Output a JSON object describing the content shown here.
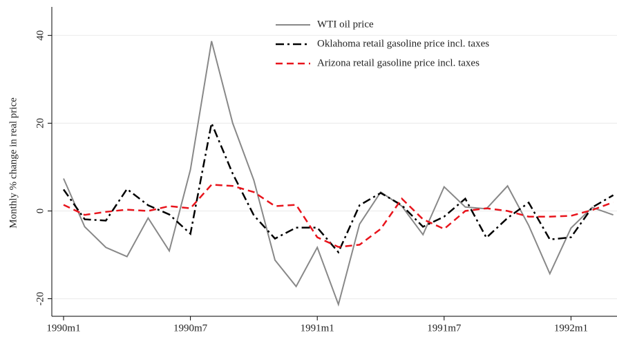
{
  "chart_data": {
    "type": "line",
    "y_label": "Monthly % change in real price",
    "categories": [
      "1990m1",
      null,
      null,
      null,
      null,
      null,
      "1990m7",
      null,
      null,
      null,
      null,
      null,
      "1991m1",
      null,
      null,
      null,
      null,
      null,
      "1991m7",
      null,
      null,
      null,
      null,
      null,
      "1992m1",
      null,
      null
    ],
    "series": [
      {
        "name": "WTI oil price",
        "color": "#888888",
        "style": "solid",
        "values": [
          7.4,
          -3.6,
          -8.3,
          -10.4,
          -1.6,
          -9.1,
          9.4,
          38.7,
          20,
          7,
          -11.2,
          -17.2,
          -8.3,
          -21.3,
          -3,
          4.3,
          1.1,
          -5.4,
          5.5,
          0.9,
          0.5,
          5.7,
          -3.3,
          -14.3,
          -3.9,
          0.8,
          -0.9
        ]
      },
      {
        "name": "Oklahoma retail gasoline price incl. taxes",
        "color": "#000000",
        "style": "dashdot",
        "values": [
          4.9,
          -1.9,
          -2.2,
          5,
          1.3,
          -0.8,
          -5.2,
          20,
          8.5,
          -1,
          -6.3,
          -3.8,
          -3.8,
          -9.4,
          1.3,
          4.1,
          1.3,
          -3.6,
          -1.3,
          2.8,
          -6.1,
          -1.6,
          1.9,
          -6.5,
          -6,
          0.8,
          3.6
        ]
      },
      {
        "name": "Arizona retail gasoline price incl. taxes",
        "color": "#e8141c",
        "style": "dashed",
        "values": [
          1.4,
          -0.9,
          -0.2,
          0.3,
          0,
          1.1,
          0.6,
          6,
          5.7,
          4.3,
          1.1,
          1.4,
          -6,
          -8.2,
          -7.7,
          -4.1,
          2.8,
          -1.9,
          -4.1,
          0,
          0.6,
          0,
          -1.3,
          -1.3,
          -1.1,
          0.2,
          2
        ]
      }
    ],
    "ylim": [
      -24,
      46.5
    ],
    "yticks": [
      -20,
      0,
      20,
      40
    ],
    "grid": true,
    "legend": "top-right"
  }
}
